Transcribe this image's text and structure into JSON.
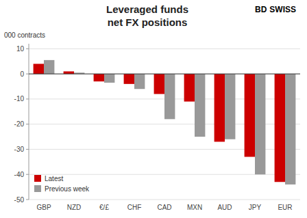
{
  "chart_data": {
    "type": "bar",
    "title": "Leveraged funds",
    "subtitle": "net FX positions",
    "ylabel": "000 contracts",
    "annotations": [
      "BD",
      "SWISS"
    ],
    "categories": [
      "GBP",
      "NZD",
      "€/£",
      "CHF",
      "CAD",
      "MXN",
      "AUD",
      "JPY",
      "EUR"
    ],
    "series": [
      {
        "name": "Latest",
        "color": "#cc0000",
        "values": [
          4.0,
          1.0,
          -3.0,
          -4.0,
          -8.0,
          -11.0,
          -27.0,
          -33.0,
          -43.0
        ]
      },
      {
        "name": "Previous week",
        "color": "#999999",
        "values": [
          5.5,
          0.5,
          -3.5,
          -6.0,
          -18.0,
          -25.0,
          -26.0,
          -40.0,
          -44.0
        ]
      }
    ],
    "ylim": [
      -50,
      12
    ],
    "yticks": [
      -50,
      -40,
      -30,
      -20,
      -10,
      0,
      10
    ],
    "grid": true,
    "legend": "lower left"
  }
}
